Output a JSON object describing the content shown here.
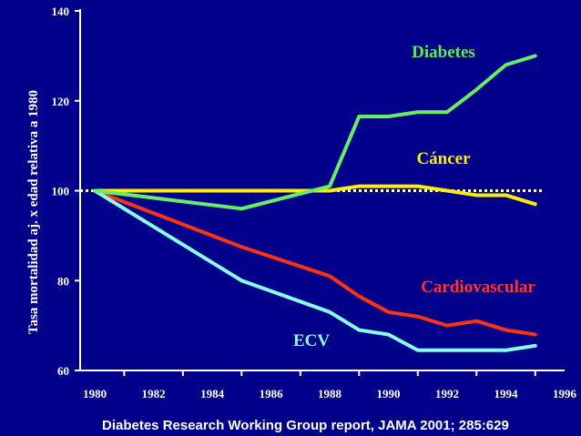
{
  "chart_data": {
    "type": "line",
    "ylabel": "Tasa mortalidad aj. x edad relativa a 1980",
    "source": "Diabetes Research Working Group report, JAMA 2001; 285:629",
    "xlim": [
      1979.5,
      1996
    ],
    "ylim": [
      60,
      140
    ],
    "x_ticks": [
      "1980",
      "1982",
      "1984",
      "1986",
      "1988",
      "1990",
      "1992",
      "1994",
      "1996"
    ],
    "y_ticks": [
      "60",
      "80",
      "100",
      "120",
      "140"
    ],
    "reference_line": {
      "y": 100,
      "style": "dotted",
      "color": "#ffffff"
    },
    "series": [
      {
        "name": "Diabetes",
        "color": "#66ee66",
        "label_color": "#55ee55",
        "x": [
          1980,
          1985,
          1988,
          1989,
          1990,
          1991,
          1992,
          1993,
          1994,
          1995
        ],
        "values": [
          100,
          96,
          101,
          116.5,
          116.5,
          117.5,
          117.5,
          122.5,
          128,
          130
        ]
      },
      {
        "name": "Cáncer",
        "color": "#ffee00",
        "label_color": "#ffee00",
        "x": [
          1980,
          1988,
          1989,
          1990,
          1991,
          1992,
          1993,
          1994,
          1995
        ],
        "values": [
          100,
          100,
          101,
          101,
          101,
          100,
          99,
          99,
          97
        ]
      },
      {
        "name": "Cardiovascular",
        "color": "#ff3311",
        "label_color": "#ff3333",
        "x": [
          1980,
          1985,
          1988,
          1989,
          1990,
          1991,
          1992,
          1993,
          1994,
          1995
        ],
        "values": [
          100,
          87.5,
          81,
          76.5,
          73,
          72,
          70,
          71,
          69,
          68
        ]
      },
      {
        "name": "ECV",
        "color": "#88ffee",
        "label_color": "#88ffee",
        "x": [
          1980,
          1985,
          1988,
          1989,
          1990,
          1991,
          1992,
          1993,
          1994,
          1995
        ],
        "values": [
          100,
          80,
          73,
          69,
          68,
          64.5,
          64.5,
          64.5,
          64.5,
          65.5
        ]
      }
    ]
  }
}
